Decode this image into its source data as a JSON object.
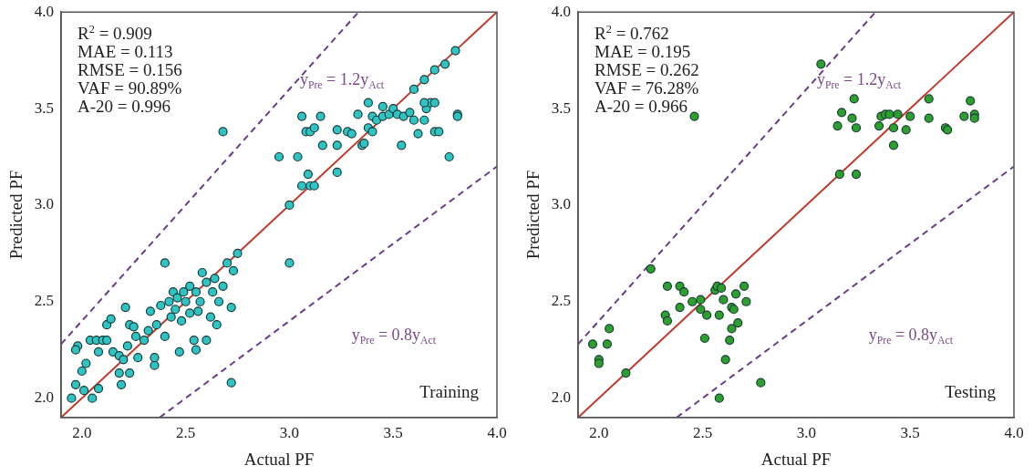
{
  "chart_data": [
    {
      "type": "scatter",
      "xlabel": "Actual PF",
      "ylabel": "Predicted PF",
      "xlim": [
        1.9,
        4.0
      ],
      "ylim": [
        1.9,
        4.0
      ],
      "xticks": [
        {
          "value": 2,
          "label": "2.0"
        },
        {
          "value": 2.5,
          "label": "2.5"
        },
        {
          "value": 3,
          "label": "3.0"
        },
        {
          "value": 3.5,
          "label": "3.5"
        },
        {
          "value": 4,
          "label": "4.0"
        }
      ],
      "yticks": [
        {
          "value": 2,
          "label": "2.0"
        },
        {
          "value": 2.5,
          "label": "2.5"
        },
        {
          "value": 3,
          "label": "3.0"
        },
        {
          "value": 3.5,
          "label": "3.5"
        },
        {
          "value": 4,
          "label": "4.0"
        }
      ],
      "marker": "circle",
      "annotations": [
        "R$^{2}$ = 0.909",
        "MAE = 0.113",
        "RMSE = 0.156",
        "VAF = 90.89%",
        "A-20 = 0.996",
        "y$_{Pre}$ = 1.2y$_{Act}$",
        "y$_{Pre}$ = 0.8y$_{Act}$",
        "Training"
      ],
      "series": [
        {
          "type": "line",
          "marker": "none",
          "color": "#c0392b",
          "line_style": "solid",
          "x": [
            1.9,
            4.0
          ],
          "values": [
            1.9,
            4.0
          ]
        },
        {
          "type": "line",
          "marker": "none",
          "color": "#6a3d8a",
          "line_style": "dashed",
          "x": [
            1.9,
            3.333
          ],
          "values": [
            2.28,
            4.0
          ]
        },
        {
          "type": "line",
          "marker": "none",
          "color": "#6a3d8a",
          "line_style": "dashed",
          "x": [
            2.375,
            4.0
          ],
          "values": [
            1.9,
            3.2
          ]
        },
        {
          "color": "#2ec4c4",
          "x": [
            3.0,
            3.6,
            3.65,
            3.7,
            3.8,
            3.75,
            2.68,
            2.95,
            3.04,
            3.06,
            3.08,
            3.1,
            3.12,
            3.15,
            3.16,
            3.09,
            3.06,
            3.1,
            3.12,
            3.23,
            3.23,
            3.23,
            3.28,
            3.3,
            3.35,
            3.33,
            3.36,
            3.38,
            3.4,
            3.42,
            3.45,
            3.48,
            3.5,
            3.52,
            3.54,
            3.55,
            3.58,
            3.6,
            3.62,
            3.65,
            3.66,
            3.68,
            3.7,
            3.72,
            3.65,
            3.7,
            3.77,
            3.81,
            3.81,
            3.4,
            3.38,
            3.45,
            3.0,
            1.95,
            1.97,
            1.98,
            1.97,
            2.0,
            2.02,
            2.01,
            2.05,
            2.08,
            2.04,
            2.07,
            2.1,
            2.12,
            2.08,
            2.12,
            2.14,
            2.15,
            2.18,
            2.18,
            2.19,
            2.2,
            2.21,
            2.22,
            2.23,
            2.23,
            2.25,
            2.26,
            2.27,
            2.3,
            2.32,
            2.33,
            2.35,
            2.35,
            2.36,
            2.4,
            2.4,
            2.43,
            2.45,
            2.44,
            2.46,
            2.48,
            2.47,
            2.5,
            2.52,
            2.54,
            2.55,
            2.56,
            2.57,
            2.58,
            2.6,
            2.6,
            2.62,
            2.63,
            2.65,
            2.66,
            2.68,
            2.7,
            2.72,
            2.73,
            2.75,
            2.72,
            2.52,
            2.49,
            2.42,
            2.38,
            2.55,
            2.64
          ],
          "values": [
            3.0,
            3.6,
            3.65,
            3.7,
            3.8,
            3.73,
            3.38,
            3.25,
            3.25,
            3.46,
            3.38,
            3.38,
            3.4,
            3.46,
            3.31,
            3.16,
            3.1,
            3.1,
            3.1,
            3.17,
            3.31,
            3.39,
            3.38,
            3.37,
            3.31,
            3.47,
            3.32,
            3.4,
            3.46,
            3.44,
            3.46,
            3.47,
            3.5,
            3.47,
            3.31,
            3.46,
            3.48,
            3.44,
            3.37,
            3.44,
            3.5,
            3.53,
            3.38,
            3.38,
            3.53,
            3.53,
            3.25,
            3.47,
            3.46,
            3.38,
            3.53,
            3.51,
            2.7,
            2.0,
            2.07,
            2.27,
            2.25,
            2.14,
            2.18,
            2.04,
            2.0,
            2.05,
            2.3,
            2.3,
            2.3,
            2.3,
            2.24,
            2.38,
            2.41,
            2.24,
            2.22,
            2.13,
            2.07,
            2.2,
            2.47,
            2.27,
            2.38,
            2.13,
            2.37,
            2.32,
            2.21,
            2.3,
            2.35,
            2.45,
            2.17,
            2.21,
            2.38,
            2.7,
            2.32,
            2.42,
            2.46,
            2.55,
            2.52,
            2.4,
            2.24,
            2.5,
            2.58,
            2.3,
            2.25,
            2.45,
            2.5,
            2.65,
            2.6,
            2.3,
            2.42,
            2.55,
            2.38,
            2.5,
            2.58,
            2.7,
            2.47,
            2.66,
            2.75,
            2.08,
            2.44,
            2.55,
            2.5,
            2.48,
            2.55,
            2.62
          ]
        }
      ]
    },
    {
      "type": "scatter",
      "xlabel": "Actual PF",
      "ylabel": "Predicted PF",
      "xlim": [
        1.9,
        4.0
      ],
      "ylim": [
        1.9,
        4.0
      ],
      "xticks": [
        {
          "value": 2,
          "label": "2.0"
        },
        {
          "value": 2.5,
          "label": "2.5"
        },
        {
          "value": 3,
          "label": "3.0"
        },
        {
          "value": 3.5,
          "label": "3.5"
        },
        {
          "value": 4,
          "label": "4.0"
        }
      ],
      "yticks": [
        {
          "value": 2,
          "label": "2.0"
        },
        {
          "value": 2.5,
          "label": "2.5"
        },
        {
          "value": 3,
          "label": "3.0"
        },
        {
          "value": 3.5,
          "label": "3.5"
        },
        {
          "value": 4,
          "label": "4.0"
        }
      ],
      "marker": "circle",
      "annotations": [
        "R$^{2}$ = 0.762",
        "MAE = 0.195",
        "RMSE = 0.262",
        "VAF = 76.28%",
        "A-20 = 0.966",
        "y$_{Pre}$ = 1.2y$_{Act}$",
        "y$_{Pre}$ = 0.8y$_{Act}$",
        "Testing"
      ],
      "series": [
        {
          "type": "line",
          "marker": "none",
          "color": "#c0392b",
          "line_style": "solid",
          "x": [
            1.9,
            4.0
          ],
          "values": [
            1.9,
            4.0
          ]
        },
        {
          "type": "line",
          "marker": "none",
          "color": "#6a3d8a",
          "line_style": "dashed",
          "x": [
            1.9,
            3.333
          ],
          "values": [
            2.28,
            4.0
          ]
        },
        {
          "type": "line",
          "marker": "none",
          "color": "#6a3d8a",
          "line_style": "dashed",
          "x": [
            2.375,
            4.0
          ],
          "values": [
            1.9,
            3.2
          ]
        },
        {
          "color": "#2ca02c",
          "x": [
            3.07,
            3.23,
            3.15,
            3.17,
            3.22,
            3.24,
            3.16,
            3.24,
            3.35,
            3.36,
            3.38,
            3.4,
            3.44,
            3.42,
            3.42,
            3.48,
            3.5,
            3.59,
            3.59,
            3.67,
            3.68,
            3.76,
            3.79,
            3.81,
            3.81,
            2.46,
            1.97,
            2.0,
            2.0,
            2.04,
            2.05,
            2.13,
            2.25,
            2.33,
            2.32,
            2.33,
            2.39,
            2.41,
            2.39,
            2.45,
            2.49,
            2.49,
            2.52,
            2.51,
            2.56,
            2.57,
            2.59,
            2.58,
            2.6,
            2.61,
            2.63,
            2.64,
            2.64,
            2.65,
            2.66,
            2.67,
            2.7,
            2.71,
            2.78,
            2.58
          ],
          "values": [
            3.73,
            3.55,
            3.41,
            3.48,
            3.45,
            3.4,
            3.16,
            3.16,
            3.41,
            3.46,
            3.47,
            3.47,
            3.47,
            3.4,
            3.31,
            3.39,
            3.46,
            3.55,
            3.45,
            3.4,
            3.39,
            3.46,
            3.54,
            3.47,
            3.45,
            3.46,
            2.28,
            2.2,
            2.18,
            2.28,
            2.36,
            2.13,
            2.67,
            2.58,
            2.43,
            2.4,
            2.58,
            2.55,
            2.47,
            2.5,
            2.51,
            2.46,
            2.43,
            2.31,
            2.56,
            2.58,
            2.57,
            2.43,
            2.51,
            2.2,
            2.3,
            2.36,
            2.47,
            2.46,
            2.54,
            2.39,
            2.58,
            2.5,
            2.08,
            2.0
          ]
        }
      ]
    }
  ]
}
